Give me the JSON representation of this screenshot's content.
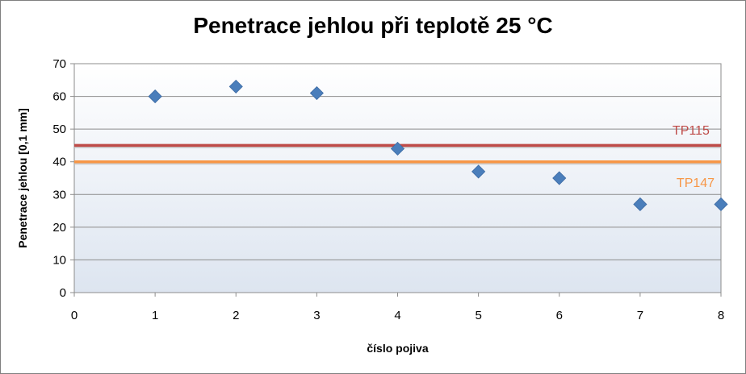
{
  "chart_data": {
    "type": "scatter",
    "title": "Penetrace jehlou při teplotě 25 °C",
    "xlabel": "číslo pojiva",
    "ylabel": "Penetrace jehlou [0,1 mm]",
    "xlim": [
      0,
      8
    ],
    "ylim": [
      0,
      70
    ],
    "xticks": [
      0,
      1,
      2,
      3,
      4,
      5,
      6,
      7,
      8
    ],
    "yticks": [
      0,
      10,
      20,
      30,
      40,
      50,
      60,
      70
    ],
    "grid": true,
    "series": [
      {
        "type": "scatter",
        "marker": "diamond",
        "color": "#4a7ebb",
        "points": [
          {
            "x": 1,
            "y": 60
          },
          {
            "x": 2,
            "y": 63
          },
          {
            "x": 3,
            "y": 61
          },
          {
            "x": 4,
            "y": 44
          },
          {
            "x": 5,
            "y": 37
          },
          {
            "x": 6,
            "y": 35
          },
          {
            "x": 7,
            "y": 27
          },
          {
            "x": 8,
            "y": 27
          }
        ]
      }
    ],
    "reference_lines": [
      {
        "name": "TP115",
        "y": 45,
        "color": "#be4b48",
        "label_x": 7.4,
        "label_y": 49.5
      },
      {
        "name": "TP147",
        "y": 40,
        "color": "#f79646",
        "label_x": 7.45,
        "label_y": 33.5
      }
    ],
    "colors": {
      "plot_background": "#e6ecf5",
      "gridline": "#8c8c8c"
    }
  }
}
